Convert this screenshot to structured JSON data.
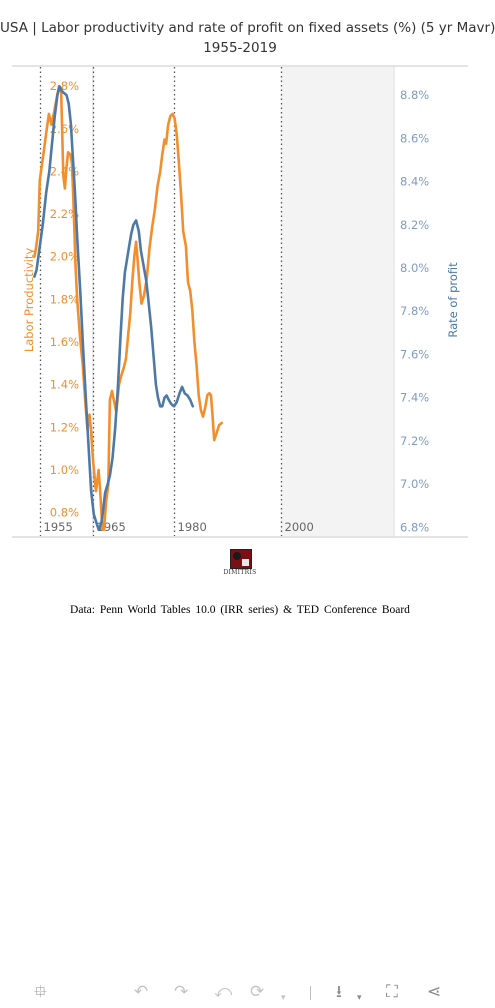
{
  "chart_data": {
    "type": "line",
    "title": "USA | Labor productivity and rate of profit on fixed assets (%) (5 yr Mavr)",
    "subtitle": "1955-2019",
    "x_range": [
      1950,
      2021
    ],
    "x_reference_lines": [
      1955,
      1965,
      1980,
      2000
    ],
    "x_tick_labels": [
      "1955",
      "1965",
      "1980",
      "2000"
    ],
    "shaded_region": [
      2000,
      2021
    ],
    "y_left": {
      "label": "Labor Productivity",
      "range": [
        0.69,
        2.89
      ],
      "ticks": [
        0.8,
        1.0,
        1.2,
        1.4,
        1.6,
        1.8,
        2.0,
        2.2,
        2.4,
        2.6,
        2.8
      ],
      "tick_labels": [
        "0.8%",
        "1.0%",
        "1.2%",
        "1.4%",
        "1.6%",
        "1.8%",
        "2.0%",
        "2.2%",
        "2.4%",
        "2.6%",
        "2.8%"
      ]
    },
    "y_right": {
      "label": "Rate of profit",
      "range": [
        6.76,
        8.93
      ],
      "ticks": [
        6.8,
        7.0,
        7.2,
        7.4,
        7.6,
        7.8,
        8.0,
        8.2,
        8.4,
        8.6,
        8.8
      ],
      "tick_labels": [
        "6.8%",
        "7.0%",
        "7.2%",
        "7.4%",
        "7.6%",
        "7.8%",
        "8.0%",
        "8.2%",
        "8.4%",
        "8.6%",
        "8.8%"
      ]
    },
    "grid": false,
    "legend": "none",
    "series": [
      {
        "name": "Labor Productivity",
        "axis": "left",
        "color": "#f28e2b",
        "points": [
          [
            1954.0,
            2.0
          ],
          [
            1954.3,
            2.04
          ],
          [
            1954.7,
            2.12
          ],
          [
            1955.0,
            2.36
          ],
          [
            1955.4,
            2.43
          ],
          [
            1955.8,
            2.5
          ],
          [
            1956.2,
            2.58
          ],
          [
            1956.7,
            2.67
          ],
          [
            1957.2,
            2.62
          ],
          [
            1957.7,
            2.68
          ],
          [
            1958.2,
            2.75
          ],
          [
            1958.6,
            2.8
          ],
          [
            1959.0,
            2.77
          ],
          [
            1959.4,
            2.38
          ],
          [
            1959.7,
            2.32
          ],
          [
            1960.0,
            2.42
          ],
          [
            1960.3,
            2.49
          ],
          [
            1960.7,
            2.48
          ],
          [
            1961.0,
            2.44
          ],
          [
            1961.3,
            2.25
          ],
          [
            1961.7,
            1.95
          ],
          [
            1962.0,
            1.8
          ],
          [
            1962.5,
            1.63
          ],
          [
            1963.0,
            1.5
          ],
          [
            1963.5,
            1.32
          ],
          [
            1963.9,
            1.19
          ],
          [
            1964.3,
            1.26
          ],
          [
            1964.6,
            1.18
          ],
          [
            1965.0,
            1.03
          ],
          [
            1965.5,
            0.9
          ],
          [
            1966.0,
            1.0
          ],
          [
            1966.3,
            0.9
          ],
          [
            1966.7,
            0.72
          ],
          [
            1967.0,
            0.72
          ],
          [
            1967.4,
            0.85
          ],
          [
            1967.8,
            0.93
          ],
          [
            1968.1,
            1.33
          ],
          [
            1968.5,
            1.37
          ],
          [
            1968.9,
            1.32
          ],
          [
            1969.3,
            1.27
          ],
          [
            1969.8,
            1.4
          ],
          [
            1970.2,
            1.44
          ],
          [
            1970.7,
            1.48
          ],
          [
            1971.1,
            1.52
          ],
          [
            1971.5,
            1.63
          ],
          [
            1971.9,
            1.73
          ],
          [
            1972.3,
            1.89
          ],
          [
            1972.7,
            2.01
          ],
          [
            1973.0,
            2.07
          ],
          [
            1973.3,
            1.98
          ],
          [
            1973.6,
            1.88
          ],
          [
            1974.0,
            1.78
          ],
          [
            1974.5,
            1.82
          ],
          [
            1975.0,
            1.9
          ],
          [
            1975.5,
            2.04
          ],
          [
            1976.0,
            2.14
          ],
          [
            1976.5,
            2.22
          ],
          [
            1977.0,
            2.33
          ],
          [
            1977.5,
            2.4
          ],
          [
            1977.9,
            2.48
          ],
          [
            1978.3,
            2.55
          ],
          [
            1978.6,
            2.53
          ],
          [
            1979.0,
            2.62
          ],
          [
            1979.4,
            2.66
          ],
          [
            1979.8,
            2.67
          ],
          [
            1980.2,
            2.65
          ],
          [
            1980.6,
            2.57
          ],
          [
            1981.0,
            2.44
          ],
          [
            1981.4,
            2.29
          ],
          [
            1981.8,
            2.12
          ],
          [
            1982.3,
            2.05
          ],
          [
            1982.7,
            1.88
          ],
          [
            1983.1,
            1.84
          ],
          [
            1983.5,
            1.75
          ],
          [
            1983.9,
            1.6
          ],
          [
            1984.3,
            1.49
          ],
          [
            1984.7,
            1.35
          ],
          [
            1985.1,
            1.28
          ],
          [
            1985.5,
            1.25
          ],
          [
            1985.9,
            1.29
          ],
          [
            1986.3,
            1.35
          ],
          [
            1986.7,
            1.36
          ],
          [
            1987.0,
            1.35
          ],
          [
            1987.3,
            1.25
          ],
          [
            1987.6,
            1.14
          ],
          [
            1988.0,
            1.17
          ],
          [
            1988.5,
            1.21
          ],
          [
            1989.0,
            1.22
          ]
        ]
      },
      {
        "name": "Rate of profit",
        "axis": "right",
        "color": "#4e79a7",
        "points": [
          [
            1954.0,
            7.96
          ],
          [
            1954.4,
            7.99
          ],
          [
            1955.0,
            8.1
          ],
          [
            1955.6,
            8.21
          ],
          [
            1956.2,
            8.35
          ],
          [
            1956.8,
            8.45
          ],
          [
            1957.3,
            8.58
          ],
          [
            1957.8,
            8.7
          ],
          [
            1958.3,
            8.8
          ],
          [
            1958.7,
            8.84
          ],
          [
            1959.1,
            8.82
          ],
          [
            1959.5,
            8.81
          ],
          [
            1960.0,
            8.8
          ],
          [
            1960.4,
            8.76
          ],
          [
            1960.8,
            8.67
          ],
          [
            1961.2,
            8.51
          ],
          [
            1961.6,
            8.34
          ],
          [
            1962.0,
            8.14
          ],
          [
            1962.6,
            7.88
          ],
          [
            1963.1,
            7.63
          ],
          [
            1963.6,
            7.4
          ],
          [
            1964.1,
            7.18
          ],
          [
            1964.6,
            6.97
          ],
          [
            1965.1,
            6.86
          ],
          [
            1965.6,
            6.82
          ],
          [
            1966.0,
            6.79
          ],
          [
            1966.5,
            6.82
          ],
          [
            1966.8,
            6.87
          ],
          [
            1967.2,
            6.96
          ],
          [
            1967.7,
            7.0
          ],
          [
            1968.1,
            7.04
          ],
          [
            1968.6,
            7.12
          ],
          [
            1969.1,
            7.26
          ],
          [
            1969.6,
            7.45
          ],
          [
            1970.1,
            7.69
          ],
          [
            1970.5,
            7.86
          ],
          [
            1970.9,
            7.98
          ],
          [
            1971.3,
            8.04
          ],
          [
            1971.7,
            8.1
          ],
          [
            1972.1,
            8.16
          ],
          [
            1972.5,
            8.2
          ],
          [
            1973.0,
            8.22
          ],
          [
            1973.5,
            8.17
          ],
          [
            1973.9,
            8.08
          ],
          [
            1974.4,
            8.01
          ],
          [
            1974.9,
            7.94
          ],
          [
            1975.3,
            7.85
          ],
          [
            1975.8,
            7.73
          ],
          [
            1976.3,
            7.58
          ],
          [
            1976.7,
            7.46
          ],
          [
            1977.1,
            7.4
          ],
          [
            1977.5,
            7.36
          ],
          [
            1977.9,
            7.36
          ],
          [
            1978.3,
            7.4
          ],
          [
            1978.7,
            7.41
          ],
          [
            1979.1,
            7.39
          ],
          [
            1979.6,
            7.37
          ],
          [
            1980.1,
            7.36
          ],
          [
            1980.6,
            7.38
          ],
          [
            1981.1,
            7.42
          ],
          [
            1981.6,
            7.45
          ],
          [
            1982.1,
            7.42
          ],
          [
            1982.6,
            7.41
          ],
          [
            1983.1,
            7.39
          ],
          [
            1983.6,
            7.36
          ]
        ]
      }
    ]
  },
  "footer": {
    "logo_text": "DIMITRIS",
    "source": "Data: Penn World Tables 10.0 (IRR series) & TED Conference Board"
  },
  "toolbar": {
    "move_icon": "⯐",
    "undo_icon": "↶",
    "redo_icon": "↷",
    "revert_icon": "⤺",
    "refresh_icon": "⟳",
    "dropdown_icon": "▾",
    "download_icon": "⭳",
    "fullscreen_icon": "⛶",
    "share_icon": "⋖"
  }
}
